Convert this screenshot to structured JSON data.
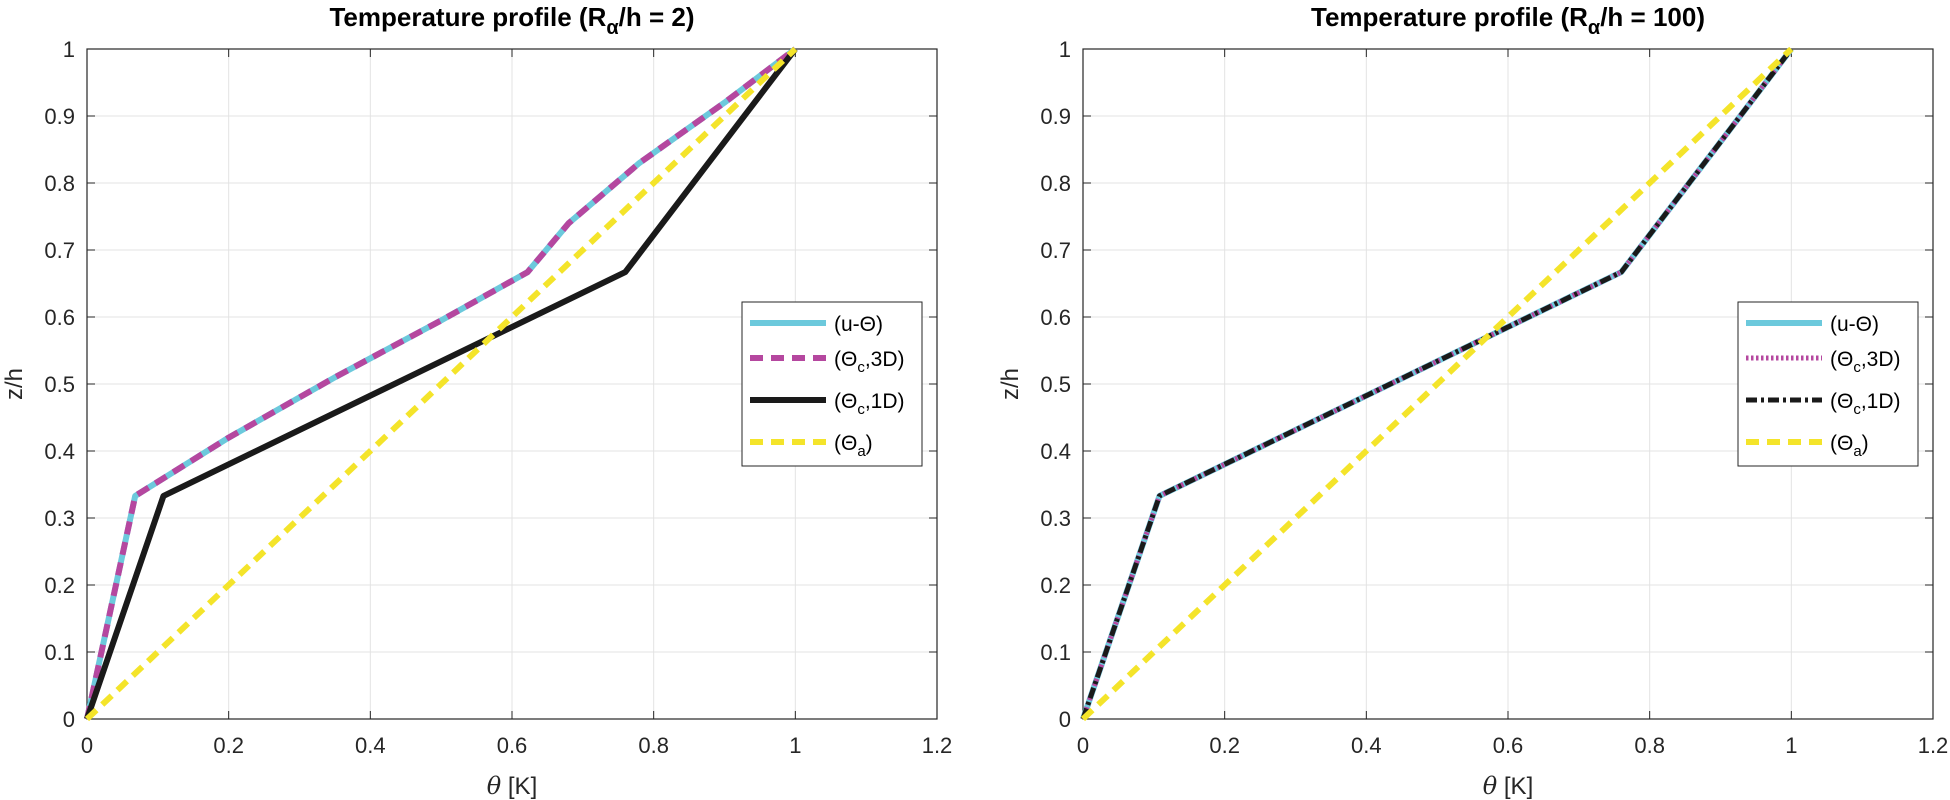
{
  "colors": {
    "cyan": "#6cc9dc",
    "magenta": "#b5479f",
    "black": "#1a1a1a",
    "yellow": "#f4e42a",
    "grid": "#e3e3e3",
    "axis": "#262626"
  },
  "chart_data": [
    {
      "type": "line",
      "title": "Temperature profile (R",
      "title_sub": "α",
      "title_suffix": "/h = 2)",
      "xlabel_symbol": "θ",
      "xlabel_unit": "[K]",
      "ylabel": "z/h",
      "xlim": [
        0,
        1.2
      ],
      "ylim": [
        0,
        1
      ],
      "xticks": [
        "0",
        "0.2",
        "0.4",
        "0.6",
        "0.8",
        "1",
        "1.2"
      ],
      "yticks": [
        "0",
        "0.1",
        "0.2",
        "0.3",
        "0.4",
        "0.5",
        "0.6",
        "0.7",
        "0.8",
        "0.9",
        "1"
      ],
      "grid": true,
      "legend_position": "right-middle",
      "series": [
        {
          "name": "(u-Θ)",
          "label": "(u-Θ)",
          "sub": "",
          "label_suffix": "",
          "color": "cyan",
          "style": "solid",
          "x": [
            0,
            0.068,
            0.2,
            0.35,
            0.5,
            0.622,
            0.68,
            0.78,
            0.9,
            1.0
          ],
          "y": [
            0,
            0.333,
            0.42,
            0.51,
            0.595,
            0.667,
            0.74,
            0.83,
            0.92,
            1.0
          ]
        },
        {
          "name": "(Θc,3D)",
          "label": "(Θ",
          "sub": "c",
          "label_suffix": ",3D)",
          "color": "magenta",
          "style": "dashed",
          "x": [
            0,
            0.068,
            0.2,
            0.35,
            0.5,
            0.622,
            0.68,
            0.78,
            0.9,
            1.0
          ],
          "y": [
            0,
            0.333,
            0.42,
            0.51,
            0.595,
            0.667,
            0.74,
            0.83,
            0.92,
            1.0
          ]
        },
        {
          "name": "(Θc,1D)",
          "label": "(Θ",
          "sub": "c",
          "label_suffix": ",1D)",
          "color": "black",
          "style": "solid",
          "x": [
            0,
            0.108,
            0.76,
            1.0
          ],
          "y": [
            0,
            0.333,
            0.667,
            1.0
          ]
        },
        {
          "name": "(Θa)",
          "label": "(Θ",
          "sub": "a",
          "label_suffix": ")",
          "color": "yellow",
          "style": "dashed",
          "x": [
            0,
            1.0
          ],
          "y": [
            0,
            1.0
          ]
        }
      ]
    },
    {
      "type": "line",
      "title": "Temperature profile (R",
      "title_sub": "α",
      "title_suffix": "/h = 100)",
      "xlabel_symbol": "θ",
      "xlabel_unit": "[K]",
      "ylabel": "z/h",
      "xlim": [
        0,
        1.2
      ],
      "ylim": [
        0,
        1
      ],
      "xticks": [
        "0",
        "0.2",
        "0.4",
        "0.6",
        "0.8",
        "1",
        "1.2"
      ],
      "yticks": [
        "0",
        "0.1",
        "0.2",
        "0.3",
        "0.4",
        "0.5",
        "0.6",
        "0.7",
        "0.8",
        "0.9",
        "1"
      ],
      "grid": true,
      "legend_position": "right-middle",
      "series": [
        {
          "name": "(u-Θ)",
          "label": "(u-Θ)",
          "sub": "",
          "label_suffix": "",
          "color": "cyan",
          "style": "solid",
          "x": [
            0,
            0.108,
            0.76,
            1.0
          ],
          "y": [
            0,
            0.333,
            0.667,
            1.0
          ]
        },
        {
          "name": "(Θc,3D)",
          "label": "(Θ",
          "sub": "c",
          "label_suffix": ",3D)",
          "color": "magenta",
          "style": "dotted",
          "x": [
            0,
            0.108,
            0.76,
            1.0
          ],
          "y": [
            0,
            0.333,
            0.667,
            1.0
          ]
        },
        {
          "name": "(Θc,1D)",
          "label": "(Θ",
          "sub": "c",
          "label_suffix": ",1D)",
          "color": "black",
          "style": "dashdot",
          "x": [
            0,
            0.108,
            0.76,
            1.0
          ],
          "y": [
            0,
            0.333,
            0.667,
            1.0
          ]
        },
        {
          "name": "(Θa)",
          "label": "(Θ",
          "sub": "a",
          "label_suffix": ")",
          "color": "yellow",
          "style": "dashed",
          "x": [
            0,
            1.0
          ],
          "y": [
            0,
            1.0
          ]
        }
      ]
    }
  ]
}
